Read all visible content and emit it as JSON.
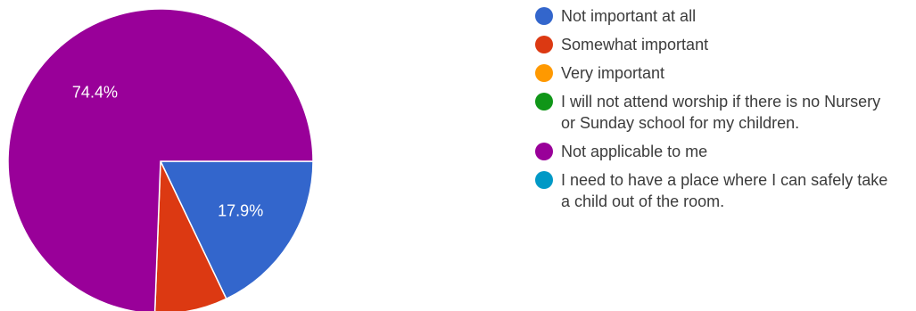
{
  "chart_data": {
    "type": "pie",
    "slices": [
      {
        "label": "Not important at all",
        "value": 17.9,
        "color": "#3366cc",
        "data_label": "17.9%"
      },
      {
        "label": "Somewhat important",
        "value": 7.7,
        "color": "#dc3912",
        "data_label": ""
      },
      {
        "label": "Very important",
        "value": 0,
        "color": "#ff9900",
        "data_label": ""
      },
      {
        "label": "I will not attend worship if there is no Nursery or Sunday school for my children.",
        "value": 0,
        "color": "#109618",
        "data_label": ""
      },
      {
        "label": "Not applicable to me",
        "value": 74.4,
        "color": "#990099",
        "data_label": "74.4%"
      },
      {
        "label": "I need to have a place where I can safely take a child out of the room.",
        "value": 0,
        "color": "#0099c6",
        "data_label": ""
      }
    ],
    "legend_position": "right"
  }
}
